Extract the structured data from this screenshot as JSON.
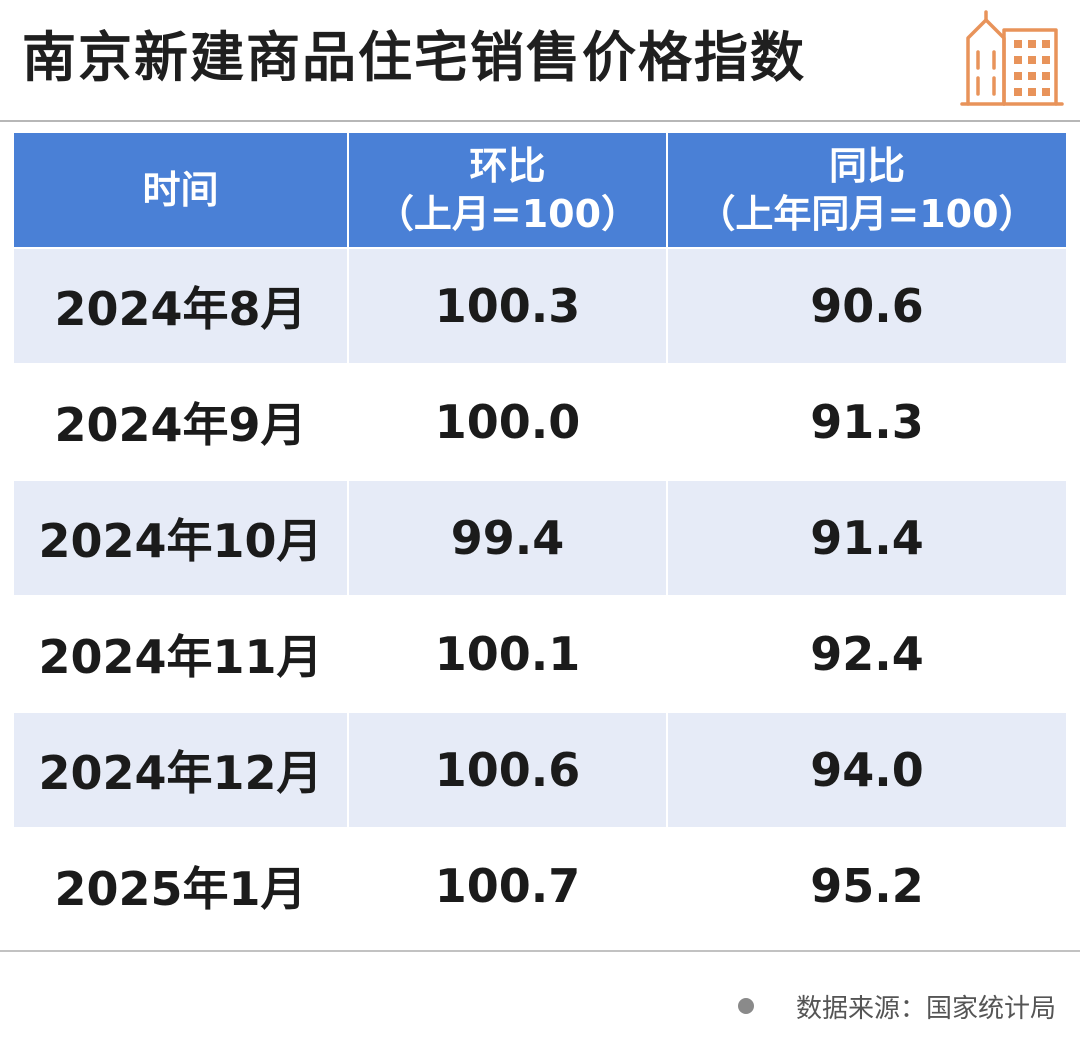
{
  "title": "南京新建商品住宅销售价格指数",
  "logo_icon": "buildings-icon",
  "colors": {
    "header_bg": "#4a80d6",
    "row_alt_bg": "#e6ebf7",
    "logo_stroke": "#e8935a"
  },
  "chart_data": {
    "type": "table",
    "columns": [
      {
        "label": "时间",
        "sub": ""
      },
      {
        "label": "环比",
        "sub": "（上月=100）"
      },
      {
        "label": "同比",
        "sub": "（上年同月=100）"
      }
    ],
    "rows": [
      {
        "period": "2024年8月",
        "mom": "100.3",
        "yoy": "90.6"
      },
      {
        "period": "2024年9月",
        "mom": "100.0",
        "yoy": "91.3"
      },
      {
        "period": "2024年10月",
        "mom": "99.4",
        "yoy": "91.4"
      },
      {
        "period": "2024年11月",
        "mom": "100.1",
        "yoy": "92.4"
      },
      {
        "period": "2024年12月",
        "mom": "100.6",
        "yoy": "94.0"
      },
      {
        "period": "2025年1月",
        "mom": "100.7",
        "yoy": "95.2"
      }
    ]
  },
  "source": "数据来源：国家统计局"
}
